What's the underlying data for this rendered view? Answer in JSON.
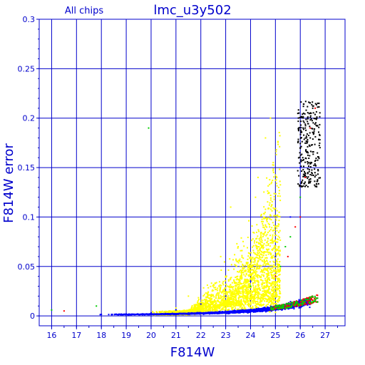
{
  "chart_data": {
    "type": "scatter",
    "title": "lmc_u3y502",
    "subtitle": "All chips",
    "xlabel": "F814W",
    "ylabel": "F814W error",
    "xlim": [
      15.5,
      27.8
    ],
    "ylim": [
      -0.01,
      0.3
    ],
    "x_ticks": [
      "16",
      "17",
      "18",
      "19",
      "20",
      "21",
      "22",
      "23",
      "24",
      "25",
      "26",
      "27"
    ],
    "y_ticks": [
      "0",
      "0.05",
      "0.1",
      "0.15",
      "0.2",
      "0.25",
      "0.3"
    ],
    "grid": true,
    "error_model": {
      "floor": 0.0012,
      "scale": 0.0105,
      "slope": 0.52,
      "ref_mag": 20
    },
    "series": [
      {
        "color": "#ffff00",
        "sample_points": [
          [
            21.5,
            0.02
          ],
          [
            22.5,
            0.03
          ],
          [
            23.5,
            0.07
          ],
          [
            24.2,
            0.12
          ],
          [
            24.6,
            0.18
          ],
          [
            23.2,
            0.11
          ],
          [
            22.8,
            0.06
          ],
          [
            24.8,
            0.2
          ],
          [
            21.0,
            0.008
          ],
          [
            23.8,
            0.015
          ],
          [
            24.3,
            0.14
          ],
          [
            23.0,
            0.04
          ]
        ]
      },
      {
        "color": "#0000ff",
        "sample_points": [
          [
            18.0,
            0.0015
          ],
          [
            19.0,
            0.002
          ],
          [
            20.0,
            0.003
          ],
          [
            21.0,
            0.006
          ],
          [
            22.0,
            0.012
          ],
          [
            23.0,
            0.02
          ],
          [
            24.0,
            0.035
          ],
          [
            25.0,
            0.06
          ],
          [
            25.6,
            0.1
          ],
          [
            26.0,
            0.15
          ],
          [
            26.3,
            0.2
          ]
        ]
      },
      {
        "color": "#000000",
        "sample_points": [
          [
            26.0,
            0.17
          ],
          [
            26.2,
            0.19
          ],
          [
            26.3,
            0.2
          ],
          [
            26.5,
            0.21
          ],
          [
            26.7,
            0.215
          ],
          [
            26.4,
            0.18
          ],
          [
            26.1,
            0.16
          ]
        ]
      },
      {
        "color": "#ff0000",
        "sample_points": [
          [
            25.0,
            0.04
          ],
          [
            25.5,
            0.06
          ],
          [
            26.0,
            0.1
          ],
          [
            26.2,
            0.14
          ],
          [
            26.4,
            0.19
          ],
          [
            25.8,
            0.09
          ],
          [
            16.5,
            0.005
          ],
          [
            26.6,
            0.21
          ]
        ]
      },
      {
        "color": "#00cc00",
        "sample_points": [
          [
            25.6,
            0.08
          ],
          [
            26.0,
            0.12
          ],
          [
            25.2,
            0.05
          ],
          [
            19.9,
            0.19
          ],
          [
            17.8,
            0.01
          ],
          [
            24.0,
            0.03
          ],
          [
            16.0,
            0.006
          ],
          [
            25.4,
            0.07
          ]
        ]
      }
    ]
  }
}
